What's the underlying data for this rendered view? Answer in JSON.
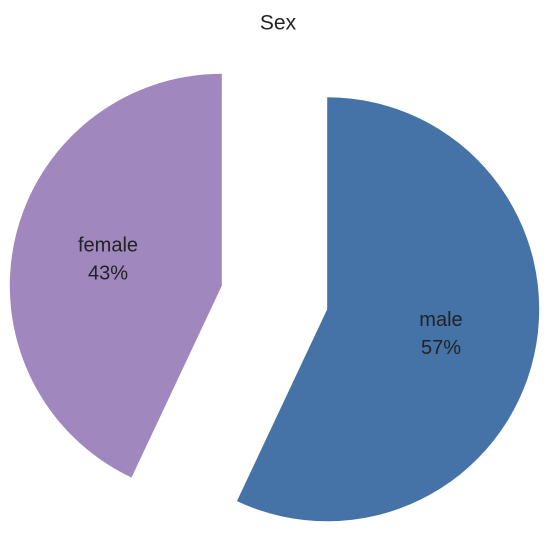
{
  "chart_data": {
    "type": "pie",
    "title": "Sex",
    "categories": [
      "male",
      "female"
    ],
    "values": [
      57,
      43
    ],
    "value_labels": [
      "57%",
      "43%"
    ],
    "colors": [
      "#4573a7",
      "#a087be"
    ],
    "exploded": true
  }
}
